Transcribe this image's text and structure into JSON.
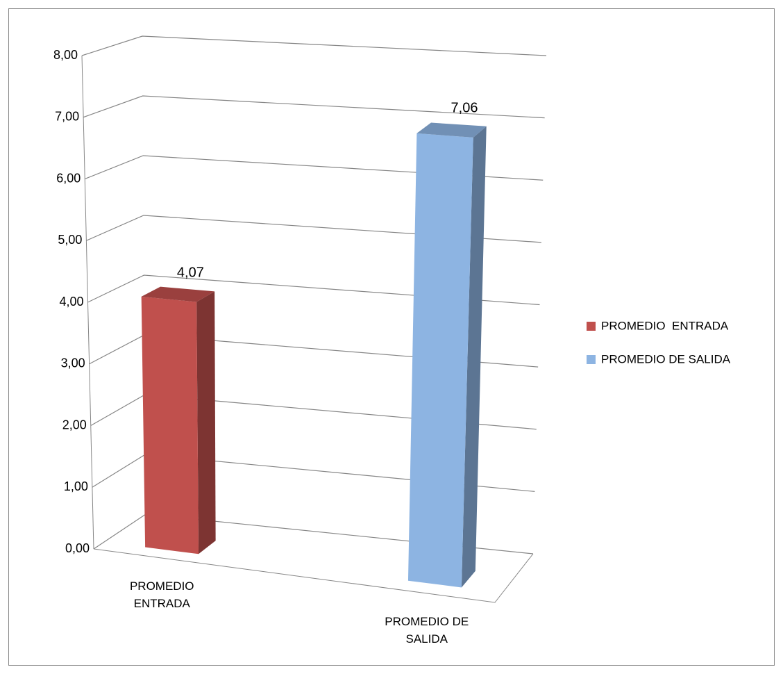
{
  "chart_data": {
    "type": "bar3d",
    "categories": [
      "PROMEDIO ENTRADA",
      "PROMEDIO DE SALIDA"
    ],
    "series": [
      {
        "name": "PROMEDIO  ENTRADA",
        "color": "#c0504d",
        "values": [
          4.07,
          null
        ],
        "value_labels": [
          "4,07",
          null
        ]
      },
      {
        "name": "PROMEDIO DE SALIDA",
        "color": "#8db4e2",
        "values": [
          null,
          7.06
        ],
        "value_labels": [
          null,
          "7,06"
        ]
      }
    ],
    "ylim": [
      0,
      8
    ],
    "yticks": [
      {
        "value": 0,
        "label": "0,00"
      },
      {
        "value": 1,
        "label": "1,00"
      },
      {
        "value": 2,
        "label": "2,00"
      },
      {
        "value": 3,
        "label": "3,00"
      },
      {
        "value": 4,
        "label": "4,00"
      },
      {
        "value": 5,
        "label": "5,00"
      },
      {
        "value": 6,
        "label": "6,00"
      },
      {
        "value": 7,
        "label": "7,00"
      },
      {
        "value": 8,
        "label": "8,00"
      }
    ],
    "grid": true,
    "legend": "right"
  }
}
